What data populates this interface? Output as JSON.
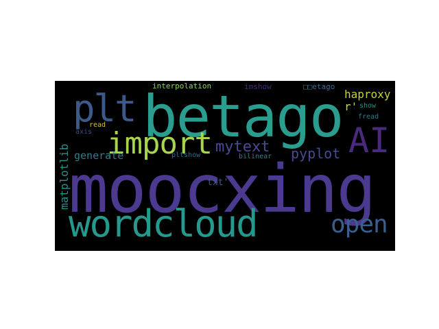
{
  "words": [
    {
      "text": "moocxing",
      "color": "#4b3a8f"
    },
    {
      "text": "betago",
      "color": "#2a9d8f"
    },
    {
      "text": "wordcloud",
      "color": "#26998f"
    },
    {
      "text": "plt",
      "color": "#3b5a8a"
    },
    {
      "text": "import",
      "color": "#a9d44d"
    },
    {
      "text": "AI",
      "color": "#4a2a7d"
    },
    {
      "text": "open",
      "color": "#3a5f8e"
    },
    {
      "text": "mytext",
      "color": "#4a4a94"
    },
    {
      "text": "pyplot",
      "color": "#4a4a94"
    },
    {
      "text": "haproxy",
      "color": "#c9d23c"
    },
    {
      "text": "r'",
      "color": "#b9d846"
    },
    {
      "text": "matplotlib",
      "color": "#2a8f8a"
    },
    {
      "text": "generate",
      "color": "#2c7e8e"
    },
    {
      "text": "txt'",
      "color": "#3b5c8a"
    },
    {
      "text": "interpolation",
      "color": "#8fd45a"
    },
    {
      "text": "imshow",
      "color": "#4a2a7d"
    },
    {
      "text": "□□etago",
      "color": "#3b6a8c"
    },
    {
      "text": "show",
      "color": "#2a8f8a"
    },
    {
      "text": "fread",
      "color": "#2a7f8e"
    },
    {
      "text": "read",
      "color": "#d8c32a"
    },
    {
      "text": "axis",
      "color": "#3b4a8a"
    },
    {
      "text": "pltshow",
      "color": "#2a6f8e"
    },
    {
      "text": "bilinear",
      "color": "#3a7a8c"
    }
  ]
}
